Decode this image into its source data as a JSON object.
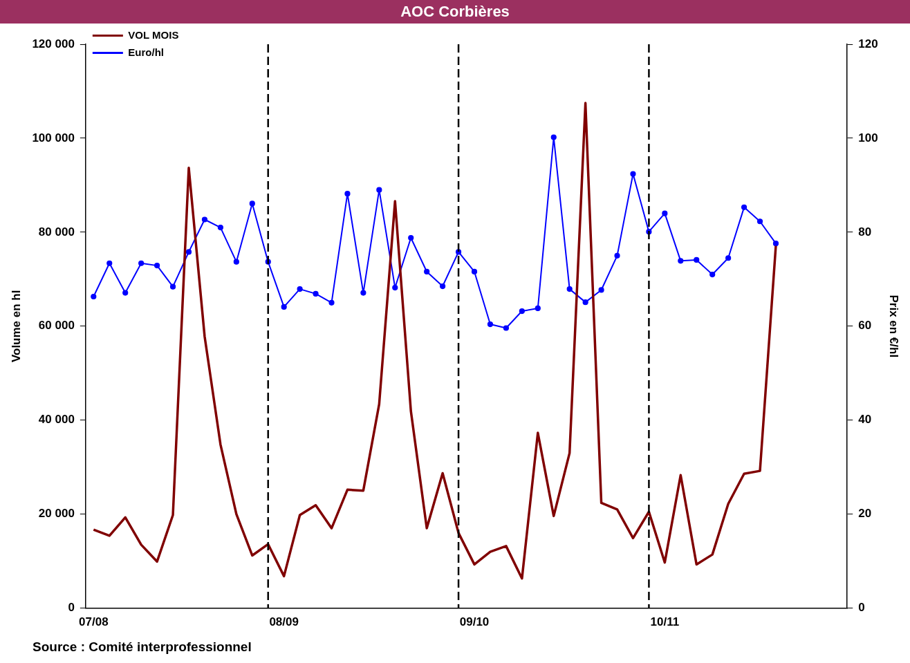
{
  "chart_data": {
    "type": "line",
    "title": "AOC Corbières",
    "ylabel": "Volume en hl",
    "y2label": "Prix en €/hl",
    "categories": [
      "07/08",
      null,
      null,
      null,
      null,
      null,
      null,
      null,
      null,
      null,
      null,
      null,
      "08/09",
      null,
      null,
      null,
      null,
      null,
      null,
      null,
      null,
      null,
      null,
      null,
      "09/10",
      null,
      null,
      null,
      null,
      null,
      null,
      null,
      null,
      null,
      null,
      null,
      "10/11",
      null,
      null,
      null,
      null,
      null,
      null,
      null,
      null,
      null,
      null,
      null
    ],
    "ylim": [
      0,
      120000
    ],
    "yticks": [
      {
        "value": 0,
        "label": "0"
      },
      {
        "value": 20000,
        "label": "20 000"
      },
      {
        "value": 40000,
        "label": "40 000"
      },
      {
        "value": 60000,
        "label": "60 000"
      },
      {
        "value": 80000,
        "label": "80 000"
      },
      {
        "value": 100000,
        "label": "100 000"
      },
      {
        "value": 120000,
        "label": "120 000"
      }
    ],
    "y2lim": [
      0,
      120
    ],
    "y2ticks": [
      0,
      20,
      40,
      60,
      80,
      100,
      120
    ],
    "series": [
      {
        "name": "VOL MOIS",
        "color": "#800000",
        "marker": "none",
        "values": [
          16700,
          15400,
          19300,
          13500,
          9900,
          19800,
          93700,
          57800,
          34800,
          20000,
          11200,
          13600,
          6800,
          19800,
          21900,
          17000,
          25200,
          25000,
          43400,
          86600,
          41900,
          17000,
          28700,
          16000,
          9300,
          12000,
          13200,
          6300,
          37300,
          19600,
          33000,
          107500,
          22400,
          21000,
          14900,
          20500,
          9700,
          28300,
          9300,
          11400,
          22200,
          28600,
          29200,
          77100,
          null,
          null,
          null,
          null
        ]
      },
      {
        "name": "Euro/hl",
        "color": "#0000ff",
        "marker": "circle",
        "axis": "y2",
        "values": [
          66.3,
          73.4,
          67.1,
          73.4,
          72.9,
          68.4,
          75.8,
          82.7,
          81.0,
          73.7,
          86.1,
          73.7,
          64.1,
          67.9,
          66.9,
          65.0,
          88.2,
          67.1,
          89.0,
          68.2,
          78.8,
          71.6,
          68.5,
          75.8,
          71.6,
          60.4,
          59.6,
          63.2,
          63.8,
          100.2,
          67.9,
          65.1,
          67.7,
          75.0,
          92.4,
          80.1,
          84.0,
          73.9,
          74.1,
          71.0,
          74.5,
          85.3,
          82.3,
          77.6,
          null,
          null,
          null,
          null
        ]
      }
    ],
    "legend": "top left",
    "grid": "x",
    "annotations": [
      "Source : Comité interprofessionnel"
    ]
  }
}
